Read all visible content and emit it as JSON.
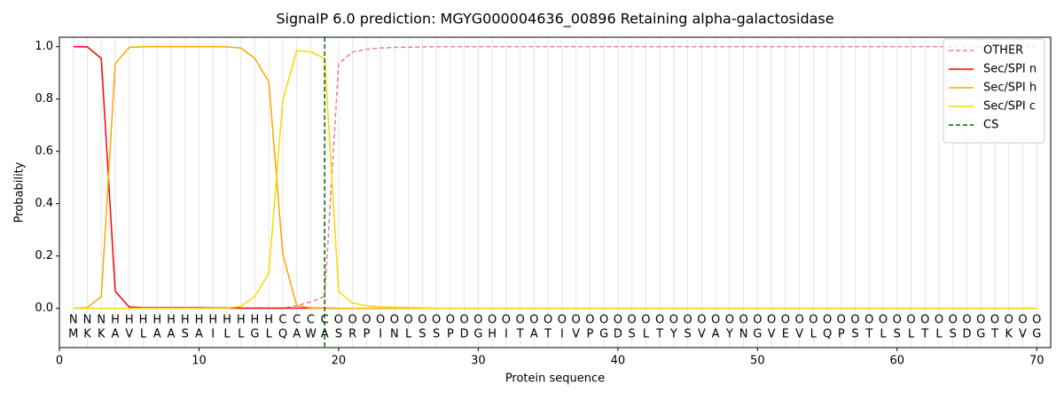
{
  "chart_data": {
    "type": "line",
    "title": "SignalP 6.0 prediction: MGYG000004636_00896 Retaining alpha-galactosidase",
    "x_label": "Protein sequence",
    "y_label": "Probability",
    "x": [
      1,
      2,
      3,
      4,
      5,
      6,
      7,
      8,
      9,
      10,
      11,
      12,
      13,
      14,
      15,
      16,
      17,
      18,
      19,
      20,
      21,
      22,
      23,
      24,
      25,
      26,
      27,
      28,
      29,
      30,
      31,
      32,
      33,
      34,
      35,
      36,
      37,
      38,
      39,
      40,
      41,
      42,
      43,
      44,
      45,
      46,
      47,
      48,
      49,
      50,
      51,
      52,
      53,
      54,
      55,
      56,
      57,
      58,
      59,
      60,
      61,
      62,
      63,
      64,
      65,
      66,
      67,
      68,
      69,
      70
    ],
    "residues": [
      "M",
      "K",
      "K",
      "A",
      "V",
      "L",
      "A",
      "A",
      "S",
      "A",
      "I",
      "L",
      "L",
      "G",
      "L",
      "Q",
      "A",
      "W",
      "A",
      "S",
      "R",
      "P",
      "I",
      "N",
      "L",
      "S",
      "S",
      "P",
      "D",
      "G",
      "H",
      "I",
      "T",
      "A",
      "T",
      "I",
      "V",
      "P",
      "G",
      "D",
      "S",
      "L",
      "T",
      "Y",
      "S",
      "V",
      "A",
      "Y",
      "N",
      "G",
      "V",
      "E",
      "V",
      "L",
      "Q",
      "P",
      "S",
      "T",
      "L",
      "S",
      "L",
      "T",
      "L",
      "S",
      "D",
      "G",
      "T",
      "K",
      "V",
      "G"
    ],
    "regions": [
      "N",
      "N",
      "N",
      "H",
      "H",
      "H",
      "H",
      "H",
      "H",
      "H",
      "H",
      "H",
      "H",
      "H",
      "H",
      "C",
      "C",
      "C",
      "C",
      "O",
      "O",
      "O",
      "O",
      "O",
      "O",
      "O",
      "O",
      "O",
      "O",
      "O",
      "O",
      "O",
      "O",
      "O",
      "O",
      "O",
      "O",
      "O",
      "O",
      "O",
      "O",
      "O",
      "O",
      "O",
      "O",
      "O",
      "O",
      "O",
      "O",
      "O",
      "O",
      "O",
      "O",
      "O",
      "O",
      "O",
      "O",
      "O",
      "O",
      "O",
      "O",
      "O",
      "O",
      "O",
      "O",
      "O",
      "O",
      "O",
      "O",
      "O"
    ],
    "region_colors": {
      "N": "#ff0000",
      "H": "#ffa500",
      "C": "#ffd700",
      "O": "#808080"
    },
    "series": [
      {
        "name": "OTHER",
        "color": "#f08080",
        "dashed": true,
        "values": [
          0,
          0,
          0,
          0,
          0,
          0,
          0,
          0,
          0,
          0,
          0,
          0,
          0,
          0,
          0,
          0,
          0.01,
          0.025,
          0.045,
          0.935,
          0.98,
          0.99,
          0.995,
          0.997,
          0.998,
          0.999,
          1,
          1,
          1,
          1,
          1,
          1,
          1,
          1,
          1,
          1,
          1,
          1,
          1,
          1,
          1,
          1,
          1,
          1,
          1,
          1,
          1,
          1,
          1,
          1,
          1,
          1,
          1,
          1,
          1,
          1,
          1,
          1,
          1,
          1,
          1,
          1,
          1,
          1,
          1,
          1,
          1,
          1,
          1,
          1
        ]
      },
      {
        "name": "Sec/SPI n",
        "color": "#ff0000",
        "dashed": false,
        "values": [
          1.0,
          0.999,
          0.955,
          0.065,
          0.005,
          0.003,
          0.003,
          0.003,
          0.003,
          0.003,
          0.002,
          0.002,
          0.001,
          0.001,
          0.001,
          0.001,
          0.001,
          0.001,
          0.001,
          0,
          0,
          0,
          0,
          0,
          0,
          0,
          0,
          0,
          0,
          0,
          0,
          0,
          0,
          0,
          0,
          0,
          0,
          0,
          0,
          0,
          0,
          0,
          0,
          0,
          0,
          0,
          0,
          0,
          0,
          0,
          0,
          0,
          0,
          0,
          0,
          0,
          0,
          0,
          0,
          0,
          0,
          0,
          0,
          0,
          0,
          0,
          0,
          0,
          0,
          0
        ]
      },
      {
        "name": "Sec/SPI h",
        "color": "#ffa500",
        "dashed": false,
        "values": [
          0,
          0.003,
          0.045,
          0.935,
          0.997,
          1.0,
          1.0,
          1.0,
          1.0,
          1.0,
          1.0,
          0.999,
          0.995,
          0.955,
          0.865,
          0.205,
          0.01,
          0.002,
          0.001,
          0,
          0,
          0,
          0,
          0,
          0,
          0,
          0,
          0,
          0,
          0,
          0,
          0,
          0,
          0,
          0,
          0,
          0,
          0,
          0,
          0,
          0,
          0,
          0,
          0,
          0,
          0,
          0,
          0,
          0,
          0,
          0,
          0,
          0,
          0,
          0,
          0,
          0,
          0,
          0,
          0,
          0,
          0,
          0,
          0,
          0,
          0,
          0,
          0,
          0,
          0
        ]
      },
      {
        "name": "Sec/SPI c",
        "color": "#ffd700",
        "dashed": false,
        "values": [
          0,
          0,
          0,
          0,
          0,
          0.001,
          0.001,
          0.001,
          0.001,
          0.001,
          0.001,
          0.001,
          0.008,
          0.045,
          0.135,
          0.795,
          0.985,
          0.98,
          0.955,
          0.065,
          0.02,
          0.01,
          0.006,
          0.004,
          0.003,
          0.002,
          0.001,
          0.001,
          0.001,
          0.001,
          0.001,
          0.001,
          0.001,
          0.001,
          0.001,
          0.001,
          0.001,
          0.001,
          0.001,
          0.001,
          0.001,
          0.001,
          0.001,
          0.001,
          0.001,
          0.001,
          0.001,
          0.001,
          0.001,
          0.001,
          0.001,
          0.001,
          0.001,
          0.001,
          0.001,
          0.001,
          0.001,
          0.001,
          0.001,
          0.001,
          0.001,
          0.001,
          0.001,
          0.001,
          0.001,
          0.001,
          0.001,
          0.001,
          0.001,
          0.001
        ]
      }
    ],
    "cs": {
      "name": "CS",
      "position": 19,
      "color": "#006400"
    },
    "xlim": [
      0,
      71
    ],
    "ylim": [
      -0.15,
      1.036
    ],
    "xticks": [
      0,
      10,
      20,
      30,
      40,
      50,
      60,
      70
    ],
    "yticks": [
      {
        "value": 0,
        "label": "0.0"
      },
      {
        "value": 0.2,
        "label": "0.2"
      },
      {
        "value": 0.4,
        "label": "0.4"
      },
      {
        "value": 0.6,
        "label": "0.6"
      },
      {
        "value": 0.8,
        "label": "0.8"
      },
      {
        "value": 1,
        "label": "1.0"
      }
    ],
    "grid": "x",
    "legend": "upper right"
  }
}
